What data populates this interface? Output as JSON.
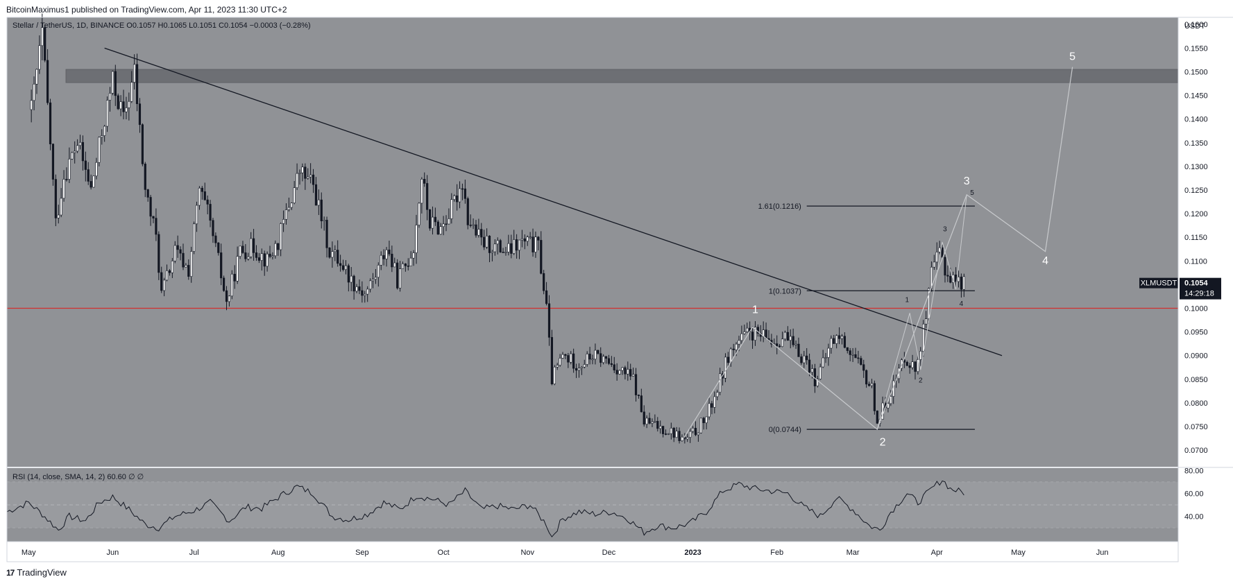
{
  "header": {
    "publisher": "BitcoinMaximus1 published on TradingView.com, Apr 11, 2023 11:30 UTC+2"
  },
  "footer": {
    "brand": "TradingView",
    "logo": "17"
  },
  "chart_data": [
    {
      "type": "candlestick",
      "title": "Stellar / TetherUS, 1D, BINANCE",
      "ohlc_labels": {
        "o": "O",
        "o_val": "0.1057",
        "h": "H",
        "h_val": "0.1065",
        "l": "L",
        "l_val": "0.1051",
        "c": "C",
        "c_val": "0.1054",
        "chg": "−0.0003 (−0.28%)"
      },
      "currency": "USDT",
      "symbol": "XLMUSDT",
      "last_price": "0.1054",
      "countdown": "14:29:18",
      "ylim": [
        0.0665,
        0.1615
      ],
      "y_ticks": [
        "0.1600",
        "0.1550",
        "0.1500",
        "0.1450",
        "0.1400",
        "0.1350",
        "0.1300",
        "0.1250",
        "0.1200",
        "0.1150",
        "0.1100",
        "0.1050",
        "0.1000",
        "0.0950",
        "0.0900",
        "0.0850",
        "0.0800",
        "0.0750",
        "0.0700"
      ],
      "x_ticks": [
        "May",
        "Jun",
        "Jul",
        "Aug",
        "Sep",
        "Oct",
        "Nov",
        "Dec",
        "2023",
        "Feb",
        "Mar",
        "Apr",
        "May",
        "Jun"
      ],
      "x_range": [
        "2022-04-23",
        "2023-06-29"
      ],
      "path": [
        [
          "2022-05-02",
          0.142
        ],
        [
          "2022-05-06",
          0.158
        ],
        [
          "2022-05-09",
          0.135
        ],
        [
          "2022-05-11",
          0.118
        ],
        [
          "2022-05-14",
          0.128
        ],
        [
          "2022-05-19",
          0.135
        ],
        [
          "2022-05-24",
          0.125
        ],
        [
          "2022-05-29",
          0.14
        ],
        [
          "2022-06-01",
          0.148
        ],
        [
          "2022-06-05",
          0.14
        ],
        [
          "2022-06-09",
          0.15
        ],
        [
          "2022-06-13",
          0.125
        ],
        [
          "2022-06-17",
          0.115
        ],
        [
          "2022-06-19",
          0.103
        ],
        [
          "2022-06-24",
          0.112
        ],
        [
          "2022-06-29",
          0.108
        ],
        [
          "2022-07-03",
          0.125
        ],
        [
          "2022-07-06",
          0.12
        ],
        [
          "2022-07-10",
          0.11
        ],
        [
          "2022-07-13",
          0.101
        ],
        [
          "2022-07-18",
          0.112
        ],
        [
          "2022-07-23",
          0.113
        ],
        [
          "2022-07-28",
          0.11
        ],
        [
          "2022-08-01",
          0.114
        ],
        [
          "2022-08-04",
          0.12
        ],
        [
          "2022-08-09",
          0.129
        ],
        [
          "2022-08-14",
          0.126
        ],
        [
          "2022-08-20",
          0.112
        ],
        [
          "2022-08-24",
          0.11
        ],
        [
          "2022-08-28",
          0.106
        ],
        [
          "2022-09-02",
          0.103
        ],
        [
          "2022-09-06",
          0.107
        ],
        [
          "2022-09-10",
          0.113
        ],
        [
          "2022-09-14",
          0.106
        ],
        [
          "2022-09-17",
          0.109
        ],
        [
          "2022-09-20",
          0.113
        ],
        [
          "2022-09-23",
          0.128
        ],
        [
          "2022-09-26",
          0.118
        ],
        [
          "2022-09-30",
          0.117
        ],
        [
          "2022-10-04",
          0.121
        ],
        [
          "2022-10-08",
          0.127
        ],
        [
          "2022-10-10",
          0.119
        ],
        [
          "2022-10-15",
          0.114
        ],
        [
          "2022-10-20",
          0.113
        ],
        [
          "2022-10-25",
          0.112
        ],
        [
          "2022-10-30",
          0.114
        ],
        [
          "2022-11-05",
          0.113
        ],
        [
          "2022-11-08",
          0.1
        ],
        [
          "2022-11-10",
          0.085
        ],
        [
          "2022-11-14",
          0.09
        ],
        [
          "2022-11-20",
          0.088
        ],
        [
          "2022-11-25",
          0.09
        ],
        [
          "2022-11-30",
          0.089
        ],
        [
          "2022-12-05",
          0.087
        ],
        [
          "2022-12-10",
          0.085
        ],
        [
          "2022-12-14",
          0.076
        ],
        [
          "2022-12-19",
          0.075
        ],
        [
          "2022-12-24",
          0.074
        ],
        [
          "2022-12-29",
          0.072
        ],
        [
          "2023-01-02",
          0.074
        ],
        [
          "2023-01-06",
          0.077
        ],
        [
          "2023-01-10",
          0.083
        ],
        [
          "2023-01-14",
          0.09
        ],
        [
          "2023-01-18",
          0.093
        ],
        [
          "2023-01-22",
          0.095
        ],
        [
          "2023-01-26",
          0.094
        ],
        [
          "2023-01-31",
          0.093
        ],
        [
          "2023-02-04",
          0.094
        ],
        [
          "2023-02-08",
          0.091
        ],
        [
          "2023-02-12",
          0.089
        ],
        [
          "2023-02-15",
          0.085
        ],
        [
          "2023-02-18",
          0.088
        ],
        [
          "2023-02-21",
          0.093
        ],
        [
          "2023-02-24",
          0.094
        ],
        [
          "2023-02-28",
          0.091
        ],
        [
          "2023-03-04",
          0.087
        ],
        [
          "2023-03-08",
          0.083
        ],
        [
          "2023-03-10",
          0.076
        ],
        [
          "2023-03-13",
          0.08
        ],
        [
          "2023-03-17",
          0.085
        ],
        [
          "2023-03-20",
          0.09
        ],
        [
          "2023-03-24",
          0.087
        ],
        [
          "2023-03-28",
          0.098
        ],
        [
          "2023-03-30",
          0.107
        ],
        [
          "2023-04-02",
          0.112
        ],
        [
          "2023-04-05",
          0.107
        ],
        [
          "2023-04-08",
          0.106
        ],
        [
          "2023-04-11",
          0.1054
        ]
      ],
      "resistance_zone": [
        0.1477,
        0.1505
      ],
      "support_line": 0.1,
      "trendline": {
        "start": [
          "2022-05-29",
          0.155
        ],
        "end": [
          "2023-04-25",
          0.09
        ]
      },
      "fib_levels": [
        {
          "label": "1.61(0.1216)",
          "value": 0.1216
        },
        {
          "label": "1(0.1037)",
          "value": 0.1037
        },
        {
          "label": "0(0.0744)",
          "value": 0.0744
        }
      ],
      "wave_projection": [
        [
          "2022-12-28",
          0.072
        ],
        [
          "2023-01-23",
          0.096
        ],
        [
          "2023-03-10",
          0.0744
        ],
        [
          "2023-04-12",
          0.124
        ],
        [
          "2023-05-11",
          0.112
        ],
        [
          "2023-05-21",
          0.151
        ]
      ],
      "subwave_path": [
        [
          "2023-03-10",
          0.0744
        ],
        [
          "2023-03-22",
          0.099
        ],
        [
          "2023-03-26",
          0.087
        ],
        [
          "2023-04-03",
          0.114
        ],
        [
          "2023-04-08",
          0.104
        ],
        [
          "2023-04-12",
          0.124
        ]
      ],
      "wave_labels_major": [
        {
          "text": "1",
          "date": "2023-01-24",
          "price": 0.099
        },
        {
          "text": "2",
          "date": "2023-03-12",
          "price": 0.071
        },
        {
          "text": "3",
          "date": "2023-04-12",
          "price": 0.1262
        },
        {
          "text": "4",
          "date": "2023-05-11",
          "price": 0.1093
        },
        {
          "text": "5",
          "date": "2023-05-21",
          "price": 0.1525
        }
      ],
      "wave_labels_minor": [
        {
          "text": "1",
          "date": "2023-03-21",
          "price": 0.1013
        },
        {
          "text": "2",
          "date": "2023-03-26",
          "price": 0.0843
        },
        {
          "text": "3",
          "date": "2023-04-04",
          "price": 0.1163
        },
        {
          "text": "4",
          "date": "2023-04-10",
          "price": 0.1005
        },
        {
          "text": "5",
          "date": "2023-04-14",
          "price": 0.124
        }
      ]
    },
    {
      "type": "line",
      "title": "RSI (14, close, SMA, 14, 2)",
      "value_label": "60.60",
      "extra_labels": [
        "∅",
        "∅"
      ],
      "ylim": [
        18,
        82
      ],
      "y_ticks": [
        "80.00",
        "60.00",
        "40.00"
      ],
      "band": [
        30,
        70
      ],
      "midline": 50,
      "series": [
        [
          "2022-04-23",
          44
        ],
        [
          "2022-05-01",
          52
        ],
        [
          "2022-05-06",
          42
        ],
        [
          "2022-05-12",
          28
        ],
        [
          "2022-05-16",
          40
        ],
        [
          "2022-05-22",
          36
        ],
        [
          "2022-05-27",
          52
        ],
        [
          "2022-06-01",
          57
        ],
        [
          "2022-06-07",
          46
        ],
        [
          "2022-06-13",
          33
        ],
        [
          "2022-06-18",
          30
        ],
        [
          "2022-06-24",
          40
        ],
        [
          "2022-07-01",
          45
        ],
        [
          "2022-07-07",
          52
        ],
        [
          "2022-07-14",
          36
        ],
        [
          "2022-07-20",
          48
        ],
        [
          "2022-07-26",
          47
        ],
        [
          "2022-08-02",
          58
        ],
        [
          "2022-08-08",
          66
        ],
        [
          "2022-08-14",
          60
        ],
        [
          "2022-08-21",
          40
        ],
        [
          "2022-08-27",
          37
        ],
        [
          "2022-09-03",
          42
        ],
        [
          "2022-09-09",
          52
        ],
        [
          "2022-09-15",
          46
        ],
        [
          "2022-09-21",
          58
        ],
        [
          "2022-09-27",
          55
        ],
        [
          "2022-10-03",
          50
        ],
        [
          "2022-10-09",
          62
        ],
        [
          "2022-10-15",
          46
        ],
        [
          "2022-10-21",
          49
        ],
        [
          "2022-10-27",
          46
        ],
        [
          "2022-11-02",
          50
        ],
        [
          "2022-11-08",
          33
        ],
        [
          "2022-11-10",
          22
        ],
        [
          "2022-11-14",
          38
        ],
        [
          "2022-11-20",
          44
        ],
        [
          "2022-11-26",
          42
        ],
        [
          "2022-12-02",
          44
        ],
        [
          "2022-12-08",
          38
        ],
        [
          "2022-12-14",
          26
        ],
        [
          "2022-12-19",
          32
        ],
        [
          "2022-12-25",
          30
        ],
        [
          "2022-12-31",
          34
        ],
        [
          "2023-01-06",
          44
        ],
        [
          "2023-01-12",
          62
        ],
        [
          "2023-01-18",
          68
        ],
        [
          "2023-01-24",
          64
        ],
        [
          "2023-01-30",
          62
        ],
        [
          "2023-02-05",
          60
        ],
        [
          "2023-02-11",
          48
        ],
        [
          "2023-02-17",
          40
        ],
        [
          "2023-02-23",
          56
        ],
        [
          "2023-03-01",
          46
        ],
        [
          "2023-03-07",
          32
        ],
        [
          "2023-03-11",
          28
        ],
        [
          "2023-03-15",
          44
        ],
        [
          "2023-03-21",
          60
        ],
        [
          "2023-03-25",
          52
        ],
        [
          "2023-03-31",
          66
        ],
        [
          "2023-04-03",
          72
        ],
        [
          "2023-04-06",
          64
        ],
        [
          "2023-04-11",
          60.6
        ]
      ]
    }
  ],
  "colors": {
    "plot_bg": "#909296",
    "grid": "#85878b",
    "candle": "#131722",
    "support": "#d32f2f",
    "zone": "#6d6f74",
    "projection": "#c8cacd",
    "price_tag": "#131722",
    "axis_text": "#131722"
  }
}
